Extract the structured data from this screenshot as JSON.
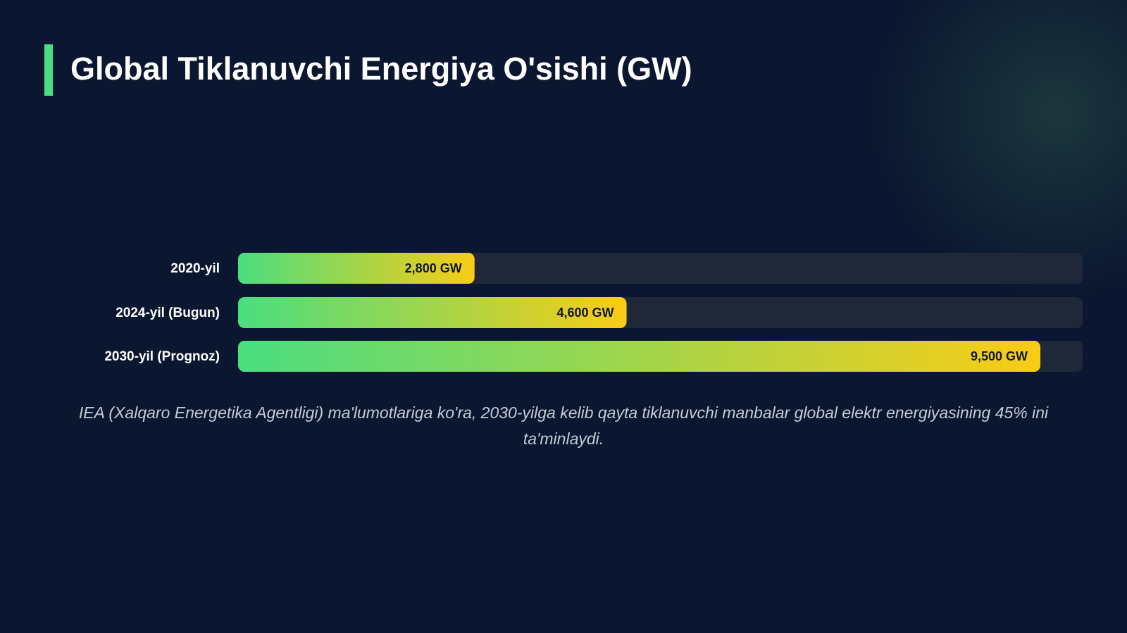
{
  "chart_data": {
    "type": "barh",
    "title": "Global Tiklanuvchi Energiya O'sishi (GW)",
    "categories": [
      "2020-yil",
      "2024-yil (Bugun)",
      "2030-yil (Prognoz)"
    ],
    "values": [
      2800,
      4600,
      9500
    ],
    "value_labels": [
      "2,800 GW",
      "4,600 GW",
      "9,500 GW"
    ],
    "xlim": [
      0,
      10000
    ],
    "colors": [
      "#4ade80",
      "#facc15"
    ],
    "note": "IEA (Xalqaro Energetika Agentligi) ma'lumotlariga ko'ra, 2030-yilga kelib qayta tiklanuvchi manbalar global elektr energiyasining 45% ini ta'minlaydi."
  }
}
